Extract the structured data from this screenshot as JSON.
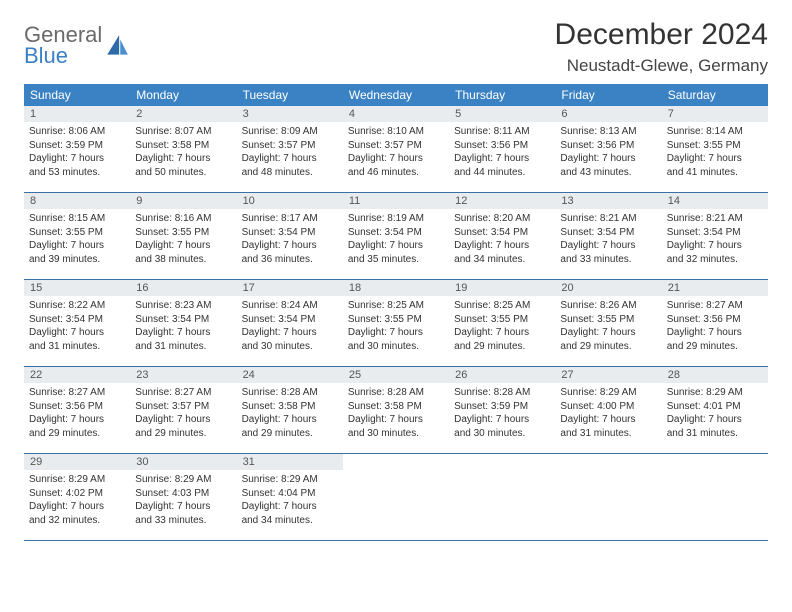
{
  "logo": {
    "line1": "General",
    "line2": "Blue"
  },
  "title": "December 2024",
  "location": "Neustadt-Glewe, Germany",
  "colors": {
    "header_bg": "#3b82c4",
    "header_text": "#ffffff",
    "daynum_bg": "#e8ecef",
    "week_border": "#3b6fa8",
    "body_text": "#333333",
    "logo_gray": "#6a6a6a",
    "logo_blue": "#3b7fc4"
  },
  "day_headers": [
    "Sunday",
    "Monday",
    "Tuesday",
    "Wednesday",
    "Thursday",
    "Friday",
    "Saturday"
  ],
  "weeks": [
    [
      {
        "n": "1",
        "sr": "Sunrise: 8:06 AM",
        "ss": "Sunset: 3:59 PM",
        "d1": "Daylight: 7 hours",
        "d2": "and 53 minutes."
      },
      {
        "n": "2",
        "sr": "Sunrise: 8:07 AM",
        "ss": "Sunset: 3:58 PM",
        "d1": "Daylight: 7 hours",
        "d2": "and 50 minutes."
      },
      {
        "n": "3",
        "sr": "Sunrise: 8:09 AM",
        "ss": "Sunset: 3:57 PM",
        "d1": "Daylight: 7 hours",
        "d2": "and 48 minutes."
      },
      {
        "n": "4",
        "sr": "Sunrise: 8:10 AM",
        "ss": "Sunset: 3:57 PM",
        "d1": "Daylight: 7 hours",
        "d2": "and 46 minutes."
      },
      {
        "n": "5",
        "sr": "Sunrise: 8:11 AM",
        "ss": "Sunset: 3:56 PM",
        "d1": "Daylight: 7 hours",
        "d2": "and 44 minutes."
      },
      {
        "n": "6",
        "sr": "Sunrise: 8:13 AM",
        "ss": "Sunset: 3:56 PM",
        "d1": "Daylight: 7 hours",
        "d2": "and 43 minutes."
      },
      {
        "n": "7",
        "sr": "Sunrise: 8:14 AM",
        "ss": "Sunset: 3:55 PM",
        "d1": "Daylight: 7 hours",
        "d2": "and 41 minutes."
      }
    ],
    [
      {
        "n": "8",
        "sr": "Sunrise: 8:15 AM",
        "ss": "Sunset: 3:55 PM",
        "d1": "Daylight: 7 hours",
        "d2": "and 39 minutes."
      },
      {
        "n": "9",
        "sr": "Sunrise: 8:16 AM",
        "ss": "Sunset: 3:55 PM",
        "d1": "Daylight: 7 hours",
        "d2": "and 38 minutes."
      },
      {
        "n": "10",
        "sr": "Sunrise: 8:17 AM",
        "ss": "Sunset: 3:54 PM",
        "d1": "Daylight: 7 hours",
        "d2": "and 36 minutes."
      },
      {
        "n": "11",
        "sr": "Sunrise: 8:19 AM",
        "ss": "Sunset: 3:54 PM",
        "d1": "Daylight: 7 hours",
        "d2": "and 35 minutes."
      },
      {
        "n": "12",
        "sr": "Sunrise: 8:20 AM",
        "ss": "Sunset: 3:54 PM",
        "d1": "Daylight: 7 hours",
        "d2": "and 34 minutes."
      },
      {
        "n": "13",
        "sr": "Sunrise: 8:21 AM",
        "ss": "Sunset: 3:54 PM",
        "d1": "Daylight: 7 hours",
        "d2": "and 33 minutes."
      },
      {
        "n": "14",
        "sr": "Sunrise: 8:21 AM",
        "ss": "Sunset: 3:54 PM",
        "d1": "Daylight: 7 hours",
        "d2": "and 32 minutes."
      }
    ],
    [
      {
        "n": "15",
        "sr": "Sunrise: 8:22 AM",
        "ss": "Sunset: 3:54 PM",
        "d1": "Daylight: 7 hours",
        "d2": "and 31 minutes."
      },
      {
        "n": "16",
        "sr": "Sunrise: 8:23 AM",
        "ss": "Sunset: 3:54 PM",
        "d1": "Daylight: 7 hours",
        "d2": "and 31 minutes."
      },
      {
        "n": "17",
        "sr": "Sunrise: 8:24 AM",
        "ss": "Sunset: 3:54 PM",
        "d1": "Daylight: 7 hours",
        "d2": "and 30 minutes."
      },
      {
        "n": "18",
        "sr": "Sunrise: 8:25 AM",
        "ss": "Sunset: 3:55 PM",
        "d1": "Daylight: 7 hours",
        "d2": "and 30 minutes."
      },
      {
        "n": "19",
        "sr": "Sunrise: 8:25 AM",
        "ss": "Sunset: 3:55 PM",
        "d1": "Daylight: 7 hours",
        "d2": "and 29 minutes."
      },
      {
        "n": "20",
        "sr": "Sunrise: 8:26 AM",
        "ss": "Sunset: 3:55 PM",
        "d1": "Daylight: 7 hours",
        "d2": "and 29 minutes."
      },
      {
        "n": "21",
        "sr": "Sunrise: 8:27 AM",
        "ss": "Sunset: 3:56 PM",
        "d1": "Daylight: 7 hours",
        "d2": "and 29 minutes."
      }
    ],
    [
      {
        "n": "22",
        "sr": "Sunrise: 8:27 AM",
        "ss": "Sunset: 3:56 PM",
        "d1": "Daylight: 7 hours",
        "d2": "and 29 minutes."
      },
      {
        "n": "23",
        "sr": "Sunrise: 8:27 AM",
        "ss": "Sunset: 3:57 PM",
        "d1": "Daylight: 7 hours",
        "d2": "and 29 minutes."
      },
      {
        "n": "24",
        "sr": "Sunrise: 8:28 AM",
        "ss": "Sunset: 3:58 PM",
        "d1": "Daylight: 7 hours",
        "d2": "and 29 minutes."
      },
      {
        "n": "25",
        "sr": "Sunrise: 8:28 AM",
        "ss": "Sunset: 3:58 PM",
        "d1": "Daylight: 7 hours",
        "d2": "and 30 minutes."
      },
      {
        "n": "26",
        "sr": "Sunrise: 8:28 AM",
        "ss": "Sunset: 3:59 PM",
        "d1": "Daylight: 7 hours",
        "d2": "and 30 minutes."
      },
      {
        "n": "27",
        "sr": "Sunrise: 8:29 AM",
        "ss": "Sunset: 4:00 PM",
        "d1": "Daylight: 7 hours",
        "d2": "and 31 minutes."
      },
      {
        "n": "28",
        "sr": "Sunrise: 8:29 AM",
        "ss": "Sunset: 4:01 PM",
        "d1": "Daylight: 7 hours",
        "d2": "and 31 minutes."
      }
    ],
    [
      {
        "n": "29",
        "sr": "Sunrise: 8:29 AM",
        "ss": "Sunset: 4:02 PM",
        "d1": "Daylight: 7 hours",
        "d2": "and 32 minutes."
      },
      {
        "n": "30",
        "sr": "Sunrise: 8:29 AM",
        "ss": "Sunset: 4:03 PM",
        "d1": "Daylight: 7 hours",
        "d2": "and 33 minutes."
      },
      {
        "n": "31",
        "sr": "Sunrise: 8:29 AM",
        "ss": "Sunset: 4:04 PM",
        "d1": "Daylight: 7 hours",
        "d2": "and 34 minutes."
      },
      null,
      null,
      null,
      null
    ]
  ]
}
